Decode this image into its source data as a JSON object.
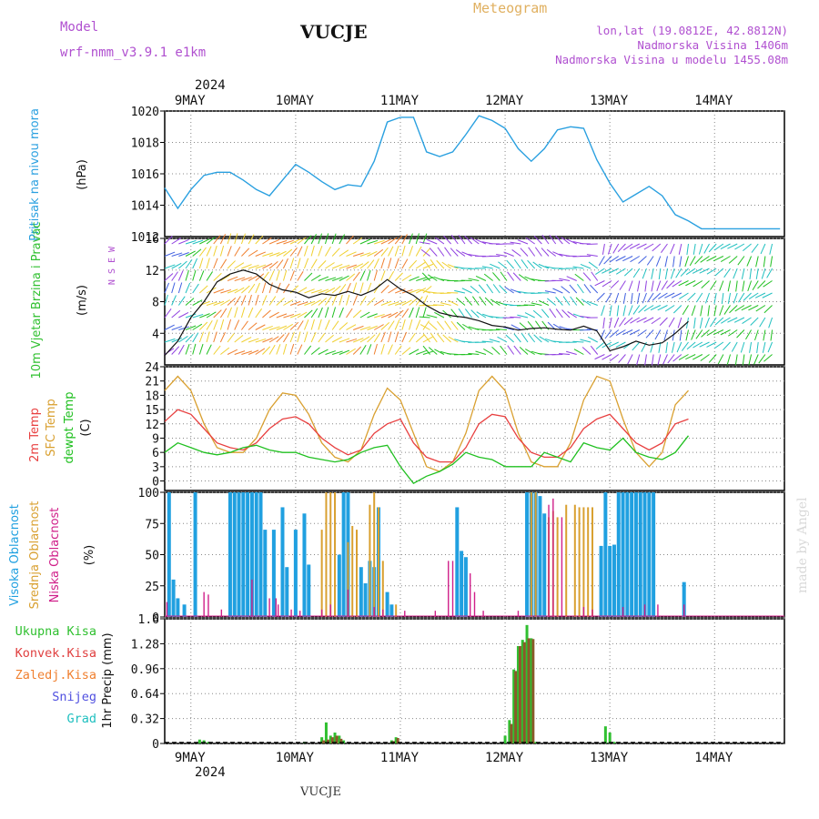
{
  "header": {
    "model_label": "Model",
    "model_name": "wrf-nmm_v3.9.1 e1km",
    "station": "VUCJE",
    "meteogram": "Meteogram",
    "lonlat": "lon,lat (19.0812E, 42.8812N)",
    "elev": "Nadmorska Visina 1406m",
    "elev_model": "Nadmorska Visina u modelu 1455.08m",
    "year": "2024",
    "footer": "VUCJE",
    "watermark": "made by Angel"
  },
  "colors": {
    "pressure": "#2aa0e0",
    "t2m": "#e84040",
    "sfc": "#d9a030",
    "dewpt": "#20c020",
    "high": "#20a0e0",
    "mid": "#d9a030",
    "low": "#d0208a",
    "total": "#30c030",
    "conv": "#e04040",
    "frozen": "#f08030",
    "snow": "#5050e0",
    "graupel": "#20c0c0",
    "ylabel_purple": "#b050d0"
  },
  "xaxis": {
    "days": [
      "9MAY",
      "10MAY",
      "11MAY",
      "12MAY",
      "13MAY",
      "14MAY"
    ],
    "start": "8MAY 18:00",
    "end": "14MAY 12:00"
  },
  "chart_data": [
    {
      "type": "line",
      "ylabel": "Pritisak na nivou mora",
      "unit": "(hPa)",
      "ylim": [
        1012,
        1020
      ],
      "yticks": [
        1014,
        1016,
        1018,
        1020
      ],
      "ytick_bottom": "1012",
      "grid": true,
      "series": [
        {
          "name": "Pritisak na nivou mora",
          "x": [
            0,
            3,
            6,
            9,
            12,
            15,
            18,
            21,
            24,
            27,
            30,
            33,
            36,
            39,
            42,
            45,
            48,
            51,
            54,
            57,
            60,
            63,
            66,
            69,
            72,
            75,
            78,
            81,
            84,
            87,
            90,
            93,
            96,
            99,
            102,
            105,
            108,
            111,
            114,
            117,
            120,
            123,
            126,
            129,
            132,
            135,
            138,
            141
          ],
          "values": [
            1015.1,
            1013.8,
            1015.0,
            1015.9,
            1016.1,
            1016.1,
            1015.6,
            1015.0,
            1014.6,
            1015.6,
            1016.6,
            1016.1,
            1015.5,
            1015.0,
            1015.3,
            1015.2,
            1016.8,
            1019.3,
            1019.6,
            1019.6,
            1017.4,
            1017.1,
            1017.4,
            1018.5,
            1019.7,
            1019.4,
            1018.9,
            1017.6,
            1016.8,
            1017.6,
            1018.8,
            1019.0,
            1018.9,
            1016.9,
            1015.4,
            1014.2,
            1014.7,
            1015.2,
            1014.6,
            1013.4,
            1013.0,
            1012.5,
            1012.5,
            1012.5,
            1012.5,
            1012.5,
            1012.5,
            1012.5
          ]
        }
      ]
    },
    {
      "type": "line",
      "ylabel": "10m Vjetar Brzina i Pravac",
      "unit": "(m/s)",
      "ylim": [
        0,
        16
      ],
      "yticks": [
        4,
        8,
        12,
        16
      ],
      "ytick_bottom": "16",
      "compass": "N S E W",
      "grid": true,
      "series": [
        {
          "name": "10m Vjetar",
          "x": [
            0,
            3,
            6,
            9,
            12,
            15,
            18,
            21,
            24,
            27,
            30,
            33,
            36,
            39,
            42,
            45,
            48,
            51,
            54,
            57,
            60,
            63,
            66,
            69,
            72,
            75,
            78,
            81,
            84,
            87,
            90,
            93,
            96,
            99,
            102,
            105,
            108,
            111,
            114,
            117,
            120
          ],
          "values": [
            1.2,
            3,
            6,
            8,
            10.5,
            11.5,
            12,
            11.5,
            10.2,
            9.5,
            9.2,
            8.5,
            9,
            8.8,
            9.3,
            8.8,
            9.5,
            10.8,
            9.6,
            8.8,
            7.5,
            6.6,
            6.2,
            6.0,
            5.6,
            5.0,
            4.8,
            4.4,
            4.6,
            4.7,
            4.5,
            4.4,
            4.9,
            4.3,
            1.8,
            2.3,
            3.0,
            2.5,
            2.8,
            4.0,
            5.5
          ]
        }
      ]
    },
    {
      "type": "line",
      "ylabel": "2m Temp / SFC Temp / dewpt Temp",
      "unit": "(C)",
      "ylim": [
        -2,
        24
      ],
      "yticks": [
        0,
        3,
        6,
        9,
        12,
        15,
        18,
        21,
        24
      ],
      "grid": true,
      "series": [
        {
          "name": "2m Temp",
          "x": [
            0,
            3,
            6,
            9,
            12,
            15,
            18,
            21,
            24,
            27,
            30,
            33,
            36,
            39,
            42,
            45,
            48,
            51,
            54,
            57,
            60,
            63,
            66,
            69,
            72,
            75,
            78,
            81,
            84,
            87,
            90,
            93,
            96,
            99,
            102,
            105,
            108,
            111,
            114,
            117,
            120
          ],
          "values": [
            12.5,
            15,
            14,
            11,
            8,
            7,
            6.5,
            8,
            11,
            13,
            13.5,
            12,
            9,
            7,
            5.5,
            6.5,
            10,
            12,
            13,
            8,
            5,
            4,
            4,
            7,
            12,
            14,
            13.5,
            9,
            6,
            5,
            5,
            7,
            11,
            13,
            14,
            11,
            8,
            6.5,
            8,
            12,
            13
          ]
        },
        {
          "name": "SFC Temp",
          "x": [
            0,
            3,
            6,
            9,
            12,
            15,
            18,
            21,
            24,
            27,
            30,
            33,
            36,
            39,
            42,
            45,
            48,
            51,
            54,
            57,
            60,
            63,
            66,
            69,
            72,
            75,
            78,
            81,
            84,
            87,
            90,
            93,
            96,
            99,
            102,
            105,
            108,
            111,
            114,
            117,
            120
          ],
          "values": [
            19,
            22,
            19,
            12,
            7,
            6,
            6,
            9,
            15,
            18.5,
            18,
            14,
            8,
            5,
            4,
            6.5,
            14,
            19.5,
            17,
            10,
            3,
            2,
            4,
            10,
            19,
            22,
            19,
            10,
            4,
            3,
            3,
            8,
            17,
            22,
            21,
            13,
            6,
            3,
            6,
            16,
            19
          ]
        },
        {
          "name": "dewpt Temp",
          "x": [
            0,
            3,
            6,
            9,
            12,
            15,
            18,
            21,
            24,
            27,
            30,
            33,
            36,
            39,
            42,
            45,
            48,
            51,
            54,
            57,
            60,
            63,
            66,
            69,
            72,
            75,
            78,
            81,
            84,
            87,
            90,
            93,
            96,
            99,
            102,
            105,
            108,
            111,
            114,
            117,
            120
          ],
          "values": [
            6,
            8,
            7,
            6,
            5.5,
            6,
            7,
            7.5,
            6.5,
            6,
            6,
            5,
            4.5,
            4,
            4.5,
            6,
            7,
            7.5,
            3,
            -0.5,
            1,
            2,
            3.5,
            6,
            5,
            4.5,
            3,
            3,
            3,
            6,
            5,
            4,
            8,
            7,
            6.5,
            9,
            6,
            5,
            4.5,
            6,
            9.5
          ]
        }
      ]
    },
    {
      "type": "bar",
      "ylabel": "Visoka Oblacnost / Srednja Oblacnost / Niska Oblacnost",
      "unit": "(%)",
      "ylim": [
        0,
        100
      ],
      "yticks": [
        0,
        25,
        50,
        75,
        100
      ],
      "grid": true,
      "series": [
        {
          "name": "Visoka Oblacnost",
          "x": [
            1,
            2,
            3,
            4.5,
            7,
            15,
            16,
            17,
            18,
            19,
            20,
            21,
            22,
            23,
            25,
            27,
            28,
            30,
            32,
            33,
            40,
            41,
            42,
            45,
            46,
            47,
            48,
            49,
            51,
            52,
            67,
            68,
            69,
            83,
            84,
            85,
            86,
            87,
            100,
            101,
            102,
            103,
            104,
            105,
            106,
            107,
            108,
            109,
            110,
            111,
            112,
            119
          ],
          "values": [
            100,
            30,
            15,
            10,
            100,
            100,
            100,
            100,
            100,
            100,
            100,
            100,
            100,
            70,
            70,
            88,
            40,
            70,
            83,
            42,
            50,
            100,
            100,
            40,
            27,
            45,
            40,
            88,
            20,
            10,
            88,
            53,
            48,
            100,
            100,
            100,
            97,
            83,
            57,
            100,
            57,
            58,
            100,
            100,
            100,
            100,
            100,
            100,
            100,
            100,
            100,
            28
          ]
        },
        {
          "name": "Srednja Oblacnost",
          "x": [
            36,
            37,
            38,
            39,
            42,
            43,
            44,
            47,
            48,
            49,
            50,
            53,
            84,
            85,
            88,
            89,
            90,
            92,
            94,
            95,
            96,
            97,
            98
          ],
          "values": [
            70,
            100,
            100,
            100,
            60,
            73,
            70,
            90,
            100,
            88,
            45,
            10,
            100,
            100,
            80,
            85,
            80,
            90,
            90,
            88,
            88,
            88,
            88
          ]
        },
        {
          "name": "Niska Oblacnost",
          "x": [
            0.5,
            9,
            10,
            13,
            20,
            24,
            25.5,
            26,
            29,
            31,
            36,
            38,
            42,
            48,
            50,
            55,
            62,
            65,
            66,
            70,
            71,
            73,
            81,
            88,
            89,
            91,
            96,
            98,
            105,
            110,
            113,
            119
          ],
          "values": [
            12,
            20,
            18,
            6,
            30,
            15,
            15,
            10,
            6,
            5,
            6,
            10,
            22,
            8,
            6,
            5,
            5,
            45,
            45,
            35,
            20,
            5,
            5,
            90,
            95,
            80,
            8,
            6,
            8,
            10,
            10,
            10
          ]
        }
      ]
    },
    {
      "type": "bar",
      "ylabel": "1hr Precip",
      "unit": "(mm)",
      "ylim": [
        0,
        1.6
      ],
      "yticks": [
        0,
        0.32,
        0.64,
        0.96,
        1.28,
        1.6
      ],
      "grid": true,
      "legend": [
        "Ukupna Kisa",
        "Konvek.Kisa",
        "Zaledj.Kisa",
        "Snijeg",
        "Grad"
      ],
      "series": [
        {
          "name": "Ukupna Kisa",
          "x": [
            8,
            9,
            10,
            32,
            36,
            37,
            38,
            39,
            40,
            41,
            52,
            53,
            78,
            79,
            80,
            81,
            82,
            83,
            84,
            85,
            101,
            102,
            103
          ],
          "values": [
            0.05,
            0.04,
            0.02,
            0.02,
            0.08,
            0.27,
            0.1,
            0.14,
            0.1,
            0.04,
            0.04,
            0.08,
            0.1,
            0.3,
            0.95,
            1.25,
            1.33,
            1.52,
            1.35,
            0.02,
            0.22,
            0.14,
            0.02
          ]
        },
        {
          "name": "Konvek.Kisa",
          "x": [
            36,
            37,
            38,
            39,
            40,
            52,
            53,
            79,
            80,
            81,
            82,
            83,
            84
          ],
          "values": [
            0.04,
            0.05,
            0.08,
            0.1,
            0.06,
            0.03,
            0.07,
            0.25,
            0.93,
            1.25,
            1.3,
            1.35,
            1.34
          ]
        }
      ]
    }
  ]
}
